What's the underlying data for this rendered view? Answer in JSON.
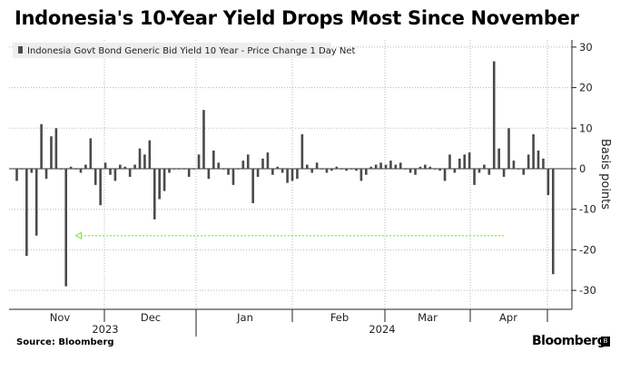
{
  "header": {
    "title": "Indonesia's 10-Year Yield Drops Most Since November"
  },
  "footer": {
    "source": "Source: Bloomberg",
    "brand": "Bloomberg",
    "brand_icon": "bloomberg-terminal-icon"
  },
  "chart_data": {
    "type": "bar",
    "legend": [
      "Indonesia Govt Bond Generic Bid Yield 10 Year - Price Change 1 Day Net"
    ],
    "ylabel": "Basis points",
    "ylim": [
      -32,
      32
    ],
    "yticks": [
      30,
      20,
      10,
      0,
      -10,
      -20,
      -30
    ],
    "grid": true,
    "legend_position": "top-left",
    "colors": {
      "bar": "#4a4a4a",
      "grid": "#b8b8b8",
      "annotation": "#8ee05a"
    },
    "month_labels": [
      "Nov",
      "Dec",
      "Jan",
      "Feb",
      "Mar",
      "Apr"
    ],
    "year_labels": [
      "2023",
      "2024"
    ],
    "annotation": {
      "type": "arrow",
      "level": -16.5,
      "direction": "left",
      "from_bar": 99,
      "to_bar": 12
    },
    "values": [
      -3,
      0,
      -21.5,
      -1,
      -16.5,
      11,
      -2.5,
      8,
      10,
      0,
      -29,
      0.5,
      0,
      -1,
      1,
      7.5,
      -4,
      -9,
      1.5,
      -1.5,
      -3,
      1,
      0.5,
      -2,
      1,
      5,
      3.5,
      7,
      -12.5,
      -7.5,
      -5.5,
      -1,
      0,
      0,
      0,
      -2,
      0,
      3.5,
      14.5,
      -2.5,
      4.5,
      1.5,
      0,
      -1.5,
      -4,
      0,
      2,
      3.5,
      -8.5,
      -2,
      2.5,
      4,
      -1.5,
      0.5,
      -1,
      -3.5,
      -3,
      -2.5,
      8.5,
      1,
      -1,
      1.5,
      0,
      -1,
      -0.5,
      0.5,
      0,
      -0.5,
      0,
      -0.5,
      -3,
      -1.5,
      0.5,
      1,
      1.5,
      1,
      2,
      1,
      1.5,
      0,
      -1,
      -1.5,
      0.5,
      1,
      0.5,
      0,
      -0.5,
      -3,
      3.5,
      -1,
      2.5,
      3.5,
      4,
      -4,
      -1,
      1,
      -1.5,
      26.5,
      5,
      -2,
      10,
      2,
      0,
      -1.5,
      3.5,
      8.5,
      4.5,
      2.5,
      -6.5,
      -26
    ]
  }
}
